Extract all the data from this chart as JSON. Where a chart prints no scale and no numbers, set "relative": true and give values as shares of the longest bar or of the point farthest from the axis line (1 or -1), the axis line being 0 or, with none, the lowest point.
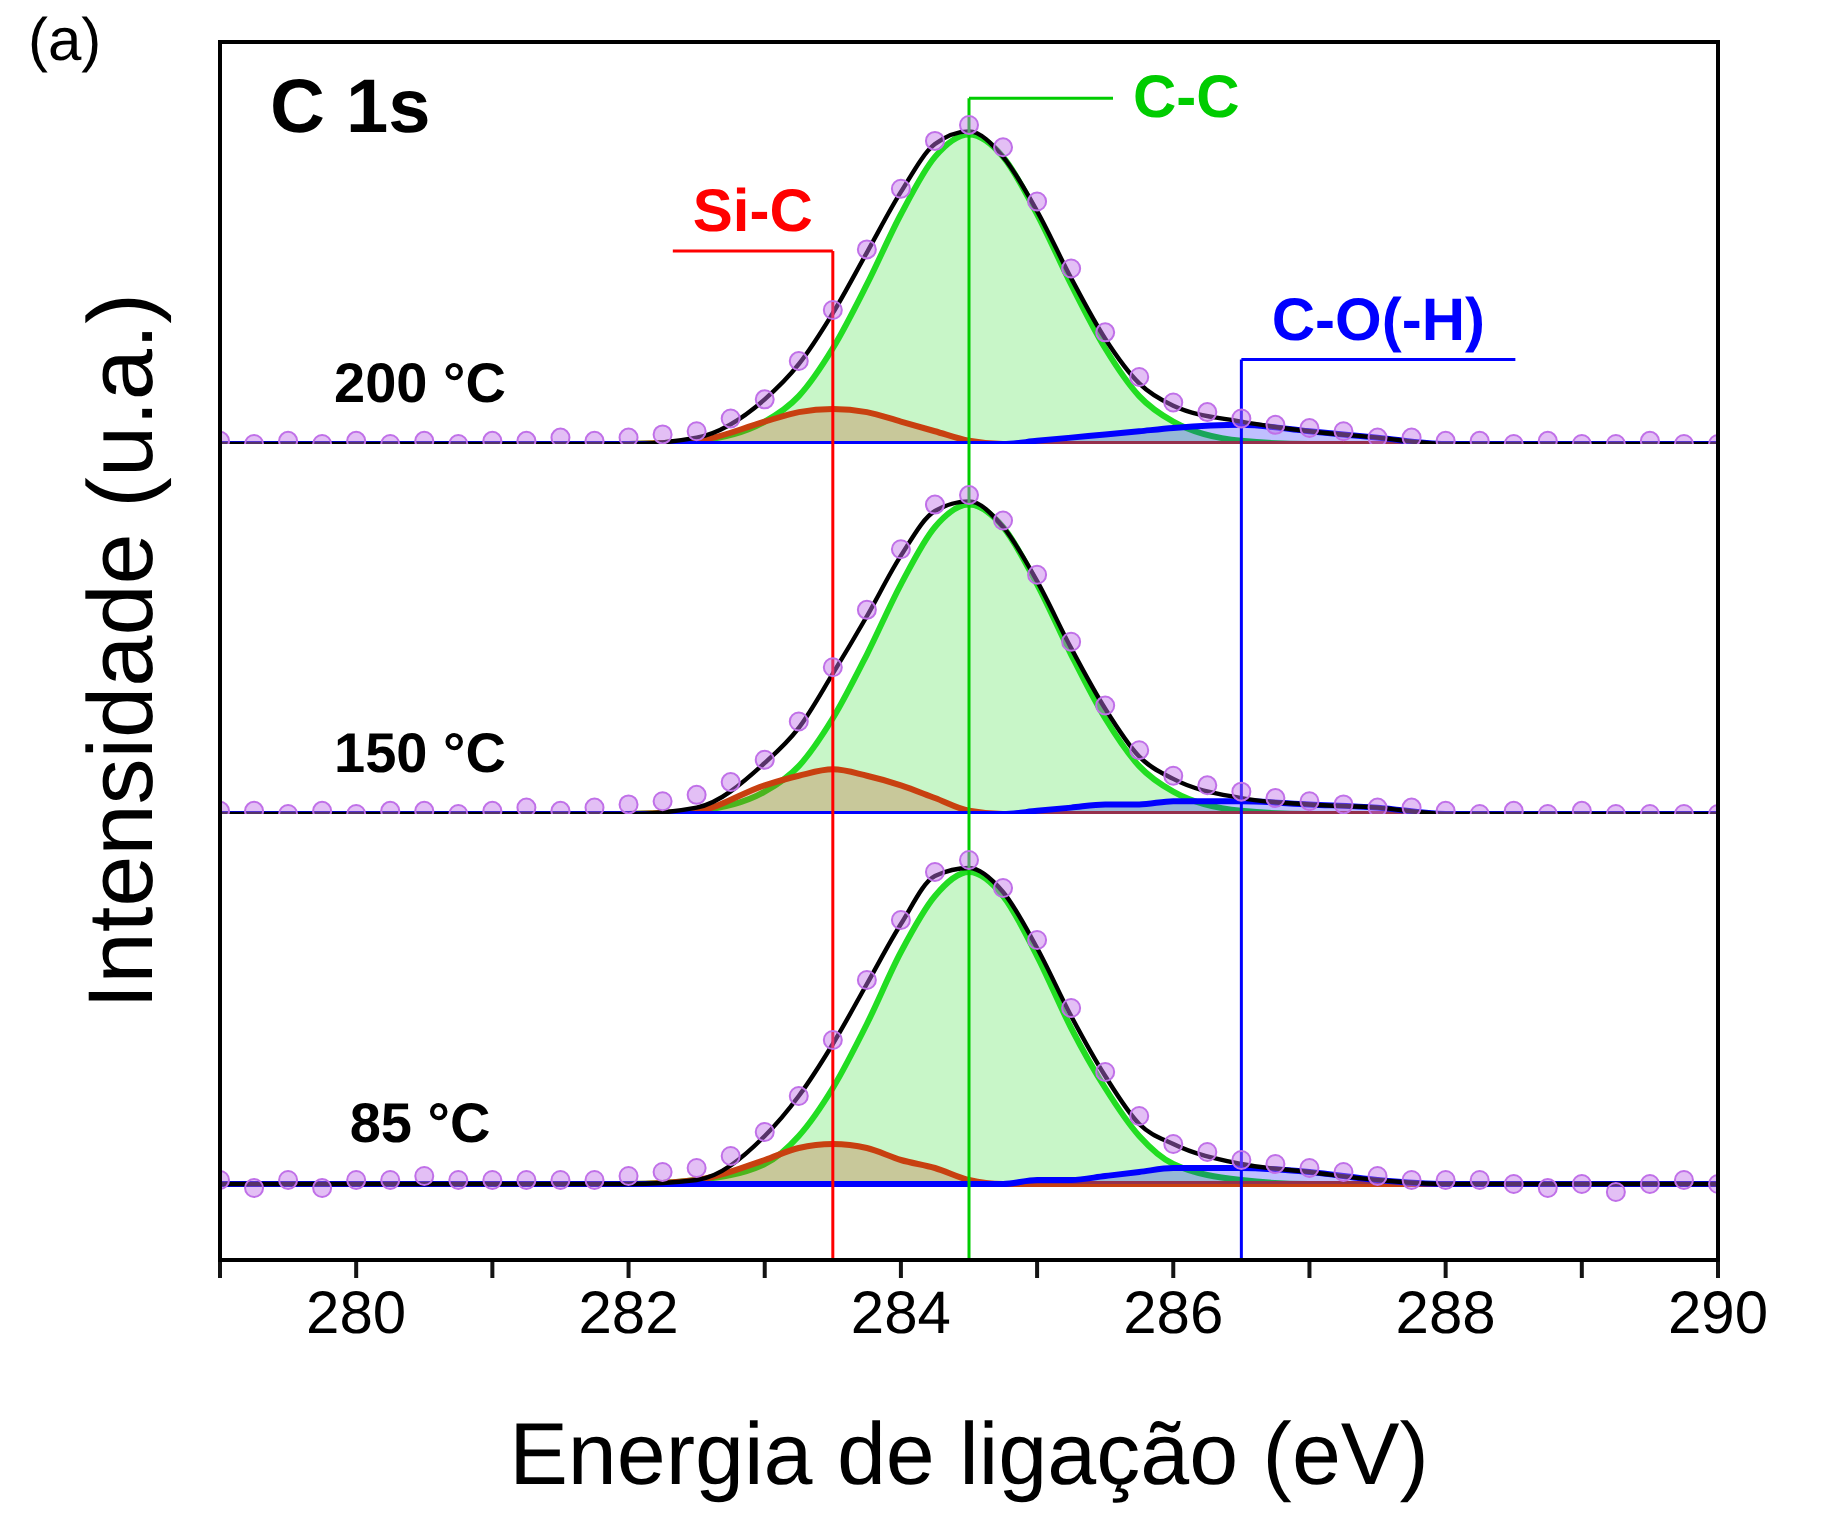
{
  "chart_data": [
    {
      "type": "line",
      "title": "C 1s",
      "relative": true,
      "xlim": [
        279,
        290
      ],
      "tick_labels": false,
      "annotations": [
        "(a)",
        "200 °C"
      ],
      "x": [
        279,
        280,
        281,
        281.5,
        282,
        282.5,
        283,
        283.25,
        283.5,
        283.75,
        284,
        284.25,
        284.5,
        284.75,
        285,
        285.25,
        285.5,
        285.75,
        286,
        286.5,
        287,
        287.5,
        288,
        289,
        290
      ],
      "ref_lines": [
        {
          "axis": "x",
          "value": 283.5,
          "label": "Si-C",
          "color": "#ff0000"
        },
        {
          "axis": "x",
          "value": 284.5,
          "label": "C-C",
          "color": "#00cc00"
        },
        {
          "axis": "x",
          "value": 286.5,
          "label": "C-O(-H)",
          "color": "#0000ff"
        }
      ],
      "series": [
        {
          "type": "area",
          "color": "#22dd22",
          "values": [
            0,
            0,
            0,
            0,
            0,
            0.01,
            0.07,
            0.15,
            0.3,
            0.5,
            0.72,
            0.9,
            0.97,
            0.9,
            0.72,
            0.5,
            0.3,
            0.15,
            0.07,
            0.01,
            0,
            0,
            0,
            0,
            0
          ]
        },
        {
          "type": "area",
          "color": "#c84010",
          "values": [
            0,
            0,
            0,
            0,
            0,
            0.01,
            0.07,
            0.1,
            0.11,
            0.1,
            0.07,
            0.04,
            0.01,
            0,
            0,
            0,
            0,
            0,
            0,
            0,
            0,
            0,
            0,
            0,
            0
          ]
        },
        {
          "type": "area",
          "color": "#0000ff",
          "values": [
            0,
            0,
            0,
            0,
            0,
            0,
            0,
            0,
            0,
            0,
            0,
            0,
            0,
            0,
            0.01,
            0.02,
            0.03,
            0.04,
            0.05,
            0.06,
            0.04,
            0.02,
            0,
            0,
            0
          ]
        },
        {
          "type": "scatter",
          "marker": "circle",
          "color": "#c070e8",
          "x": [
            279,
            279.25,
            279.5,
            279.75,
            280,
            280.25,
            280.5,
            280.75,
            281,
            281.25,
            281.5,
            281.75,
            282,
            282.25,
            282.5,
            282.75,
            283,
            283.25,
            283.5,
            283.75,
            284,
            284.25,
            284.5,
            284.75,
            285,
            285.25,
            285.5,
            285.75,
            286,
            286.25,
            286.5,
            286.75,
            287,
            287.25,
            287.5,
            287.75,
            288,
            288.25,
            288.5,
            288.75,
            289,
            289.25,
            289.5,
            289.75,
            290
          ],
          "values": [
            0.01,
            0,
            0.01,
            0,
            0.01,
            0,
            0.01,
            0,
            0.01,
            0.01,
            0.02,
            0.01,
            0.02,
            0.03,
            0.04,
            0.08,
            0.14,
            0.26,
            0.42,
            0.61,
            0.8,
            0.95,
            1,
            0.93,
            0.76,
            0.55,
            0.35,
            0.21,
            0.13,
            0.1,
            0.08,
            0.06,
            0.05,
            0.04,
            0.02,
            0.02,
            0.01,
            0.01,
            0,
            0.01,
            0,
            0,
            0.01,
            0,
            0
          ]
        },
        {
          "color": "#000000",
          "values": [
            0,
            0,
            0,
            0,
            0,
            0.02,
            0.14,
            0.25,
            0.41,
            0.6,
            0.79,
            0.94,
            0.98,
            0.9,
            0.73,
            0.52,
            0.33,
            0.19,
            0.12,
            0.07,
            0.04,
            0.02,
            0,
            0,
            0
          ]
        }
      ]
    },
    {
      "type": "line",
      "ylabel": "Intensidade (u.a.)",
      "relative": true,
      "xlim": [
        279,
        290
      ],
      "tick_labels": false,
      "annotations": [
        "150 °C"
      ],
      "x": [
        279,
        280,
        281,
        281.5,
        282,
        282.5,
        283,
        283.25,
        283.5,
        283.75,
        284,
        284.25,
        284.5,
        284.75,
        285,
        285.25,
        285.5,
        285.75,
        286,
        286.5,
        287,
        287.5,
        288,
        289,
        290
      ],
      "ref_lines": [
        {
          "axis": "x",
          "value": 283.5,
          "label": null,
          "color": "#ff0000"
        },
        {
          "axis": "x",
          "value": 284.5,
          "label": null,
          "color": "#00cc00"
        },
        {
          "axis": "x",
          "value": 286.5,
          "label": null,
          "color": "#0000ff"
        }
      ],
      "series": [
        {
          "type": "area",
          "color": "#22dd22",
          "values": [
            0,
            0,
            0,
            0,
            0,
            0.01,
            0.07,
            0.15,
            0.3,
            0.5,
            0.72,
            0.9,
            0.97,
            0.9,
            0.72,
            0.5,
            0.3,
            0.15,
            0.07,
            0.01,
            0,
            0,
            0,
            0,
            0
          ]
        },
        {
          "type": "area",
          "color": "#c84010",
          "values": [
            0,
            0,
            0,
            0,
            0,
            0.01,
            0.09,
            0.12,
            0.14,
            0.12,
            0.09,
            0.05,
            0.01,
            0,
            0,
            0,
            0,
            0,
            0,
            0,
            0,
            0,
            0,
            0,
            0
          ]
        },
        {
          "type": "area",
          "color": "#0000ff",
          "values": [
            0,
            0,
            0,
            0,
            0,
            0,
            0,
            0,
            0,
            0,
            0,
            0,
            0,
            0,
            0.01,
            0.02,
            0.03,
            0.03,
            0.04,
            0.04,
            0.03,
            0.02,
            0,
            0,
            0
          ]
        },
        {
          "type": "scatter",
          "marker": "circle",
          "color": "#c070e8",
          "x": [
            279,
            279.25,
            279.5,
            279.75,
            280,
            280.25,
            280.5,
            280.75,
            281,
            281.25,
            281.5,
            281.75,
            282,
            282.25,
            282.5,
            282.75,
            283,
            283.25,
            283.5,
            283.75,
            284,
            284.25,
            284.5,
            284.75,
            285,
            285.25,
            285.5,
            285.75,
            286,
            286.25,
            286.5,
            286.75,
            287,
            287.25,
            287.5,
            287.75,
            288,
            288.25,
            288.5,
            288.75,
            289,
            289.25,
            289.5,
            289.75,
            290
          ],
          "values": [
            0.01,
            0.01,
            0,
            0.01,
            0,
            0.01,
            0.01,
            0,
            0.01,
            0.02,
            0.01,
            0.02,
            0.03,
            0.04,
            0.06,
            0.1,
            0.17,
            0.29,
            0.46,
            0.64,
            0.83,
            0.97,
            1,
            0.92,
            0.75,
            0.54,
            0.34,
            0.2,
            0.12,
            0.09,
            0.07,
            0.05,
            0.04,
            0.03,
            0.02,
            0.02,
            0.01,
            0,
            0.01,
            0,
            0.01,
            0,
            0,
            0,
            0
          ]
        },
        {
          "color": "#000000",
          "values": [
            0,
            0,
            0,
            0,
            0,
            0.02,
            0.16,
            0.27,
            0.44,
            0.62,
            0.81,
            0.95,
            0.98,
            0.9,
            0.73,
            0.52,
            0.33,
            0.18,
            0.11,
            0.05,
            0.03,
            0.02,
            0,
            0,
            0
          ]
        }
      ]
    },
    {
      "type": "line",
      "xlabel": "Energia de ligação (eV)",
      "relative": true,
      "xlim": [
        279,
        290
      ],
      "tick_labels": "x",
      "annotations": [
        "85 °C"
      ],
      "xticks": [
        {
          "value": 279,
          "label": null
        },
        280,
        {
          "value": 281,
          "label": null
        },
        282,
        {
          "value": 283,
          "label": null
        },
        284,
        {
          "value": 285,
          "label": null
        },
        286,
        {
          "value": 287,
          "label": null
        },
        288,
        {
          "value": 289,
          "label": null
        },
        290
      ],
      "x": [
        279,
        280,
        281,
        281.5,
        282,
        282.5,
        283,
        283.25,
        283.5,
        283.75,
        284,
        284.25,
        284.5,
        284.75,
        285,
        285.25,
        285.5,
        285.75,
        286,
        286.5,
        287,
        287.5,
        288,
        289,
        290
      ],
      "ref_lines": [
        {
          "axis": "x",
          "value": 283.5,
          "label": null,
          "color": "#ff0000"
        },
        {
          "axis": "x",
          "value": 284.5,
          "label": null,
          "color": "#00cc00"
        },
        {
          "axis": "x",
          "value": 286.5,
          "label": null,
          "color": "#0000ff"
        }
      ],
      "series": [
        {
          "type": "area",
          "color": "#22dd22",
          "values": [
            0.19,
            0.19,
            0.19,
            0.19,
            0.19,
            0.2,
            0.24,
            0.31,
            0.43,
            0.59,
            0.77,
            0.91,
            0.97,
            0.91,
            0.76,
            0.58,
            0.43,
            0.31,
            0.24,
            0.2,
            0.19,
            0.19,
            0.19,
            0.19,
            0.19
          ]
        },
        {
          "type": "area",
          "color": "#c84010",
          "values": [
            0.19,
            0.19,
            0.19,
            0.19,
            0.19,
            0.2,
            0.25,
            0.28,
            0.29,
            0.28,
            0.25,
            0.23,
            0.2,
            0.19,
            0.19,
            0.19,
            0.19,
            0.19,
            0.19,
            0.19,
            0.19,
            0.19,
            0.19,
            0.19,
            0.19
          ]
        },
        {
          "type": "area",
          "color": "#0000ff",
          "values": [
            0.19,
            0.19,
            0.19,
            0.19,
            0.19,
            0.19,
            0.19,
            0.19,
            0.19,
            0.19,
            0.19,
            0.19,
            0.19,
            0.19,
            0.2,
            0.2,
            0.21,
            0.22,
            0.23,
            0.23,
            0.22,
            0.2,
            0.19,
            0.19,
            0.19
          ]
        },
        {
          "type": "scatter",
          "marker": "circle",
          "color": "#c070e8",
          "x": [
            279,
            279.25,
            279.5,
            279.75,
            280,
            280.25,
            280.5,
            280.75,
            281,
            281.25,
            281.5,
            281.75,
            282,
            282.25,
            282.5,
            282.75,
            283,
            283.25,
            283.5,
            283.75,
            284,
            284.25,
            284.5,
            284.75,
            285,
            285.25,
            285.5,
            285.75,
            286,
            286.25,
            286.5,
            286.75,
            287,
            287.25,
            287.5,
            287.75,
            288,
            288.25,
            288.5,
            288.75,
            289,
            289.25,
            289.5,
            289.75,
            290
          ],
          "values": [
            0.2,
            0.18,
            0.2,
            0.18,
            0.2,
            0.2,
            0.21,
            0.2,
            0.2,
            0.2,
            0.2,
            0.2,
            0.21,
            0.22,
            0.23,
            0.26,
            0.32,
            0.41,
            0.55,
            0.7,
            0.85,
            0.97,
            1,
            0.93,
            0.8,
            0.63,
            0.47,
            0.36,
            0.29,
            0.27,
            0.25,
            0.24,
            0.23,
            0.22,
            0.21,
            0.2,
            0.2,
            0.2,
            0.19,
            0.18,
            0.19,
            0.17,
            0.19,
            0.2,
            0.19
          ]
        },
        {
          "color": "#000000",
          "values": [
            0.19,
            0.19,
            0.19,
            0.19,
            0.19,
            0.2,
            0.31,
            0.41,
            0.54,
            0.69,
            0.84,
            0.96,
            0.98,
            0.92,
            0.78,
            0.61,
            0.46,
            0.34,
            0.29,
            0.24,
            0.22,
            0.2,
            0.19,
            0.19,
            0.19
          ]
        }
      ]
    }
  ]
}
